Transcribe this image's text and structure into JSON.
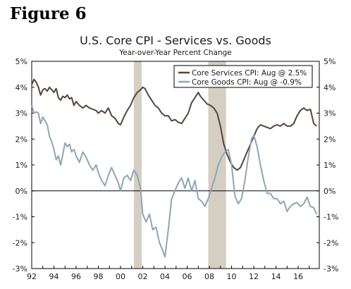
{
  "figure_label": "Figure 6",
  "chart_data": {
    "type": "line",
    "title": "U.S. Core CPI - Services vs. Goods",
    "subtitle": "Year-over-Year Percent Change",
    "xlim": [
      1992.0,
      2017.9
    ],
    "ylim": [
      -3,
      5
    ],
    "y_ticks": [
      "-3%",
      "-2%",
      "-1%",
      "0%",
      "1%",
      "2%",
      "3%",
      "4%",
      "5%"
    ],
    "x_ticks": [
      "92",
      "94",
      "96",
      "98",
      "00",
      "02",
      "04",
      "06",
      "08",
      "10",
      "12",
      "14",
      "16"
    ],
    "x_tick_years": [
      1992,
      1994,
      1996,
      1998,
      2000,
      2002,
      2004,
      2006,
      2008,
      2010,
      2012,
      2014,
      2016
    ],
    "recessions": [
      [
        2001.2,
        2001.9
      ],
      [
        2007.9,
        2009.5
      ]
    ],
    "legend_position": "top-right",
    "series": [
      {
        "name": "Core Services CPI: Aug @ 2.5%",
        "color": "#54453a",
        "points": [
          [
            1992.0,
            4.1
          ],
          [
            1992.2,
            4.3
          ],
          [
            1992.4,
            4.2
          ],
          [
            1992.6,
            4.0
          ],
          [
            1992.8,
            3.7
          ],
          [
            1993.0,
            3.9
          ],
          [
            1993.2,
            3.95
          ],
          [
            1993.4,
            3.85
          ],
          [
            1993.6,
            4.0
          ],
          [
            1993.8,
            3.9
          ],
          [
            1994.0,
            3.8
          ],
          [
            1994.2,
            3.95
          ],
          [
            1994.4,
            3.6
          ],
          [
            1994.6,
            3.5
          ],
          [
            1994.8,
            3.65
          ],
          [
            1995.0,
            3.6
          ],
          [
            1995.2,
            3.7
          ],
          [
            1995.4,
            3.55
          ],
          [
            1995.6,
            3.6
          ],
          [
            1995.8,
            3.3
          ],
          [
            1996.0,
            3.45
          ],
          [
            1996.3,
            3.3
          ],
          [
            1996.6,
            3.2
          ],
          [
            1996.9,
            3.3
          ],
          [
            1997.2,
            3.2
          ],
          [
            1997.5,
            3.15
          ],
          [
            1997.8,
            3.1
          ],
          [
            1998.0,
            3.0
          ],
          [
            1998.3,
            3.1
          ],
          [
            1998.6,
            3.0
          ],
          [
            1998.9,
            3.2
          ],
          [
            1999.2,
            2.9
          ],
          [
            1999.5,
            2.8
          ],
          [
            1999.8,
            2.6
          ],
          [
            2000.0,
            2.55
          ],
          [
            2000.3,
            2.85
          ],
          [
            2000.6,
            3.1
          ],
          [
            2000.9,
            3.3
          ],
          [
            2001.2,
            3.6
          ],
          [
            2001.5,
            3.8
          ],
          [
            2001.8,
            3.9
          ],
          [
            2002.0,
            4.0
          ],
          [
            2002.2,
            3.95
          ],
          [
            2002.5,
            3.7
          ],
          [
            2002.8,
            3.5
          ],
          [
            2003.1,
            3.3
          ],
          [
            2003.4,
            3.2
          ],
          [
            2003.7,
            3.0
          ],
          [
            2004.0,
            2.9
          ],
          [
            2004.3,
            2.9
          ],
          [
            2004.6,
            2.7
          ],
          [
            2004.9,
            2.75
          ],
          [
            2005.2,
            2.65
          ],
          [
            2005.5,
            2.6
          ],
          [
            2005.8,
            2.8
          ],
          [
            2006.1,
            3.0
          ],
          [
            2006.4,
            3.4
          ],
          [
            2006.7,
            3.6
          ],
          [
            2007.0,
            3.8
          ],
          [
            2007.2,
            3.65
          ],
          [
            2007.5,
            3.5
          ],
          [
            2007.8,
            3.35
          ],
          [
            2008.1,
            3.3
          ],
          [
            2008.4,
            3.2
          ],
          [
            2008.7,
            3.0
          ],
          [
            2009.0,
            2.5
          ],
          [
            2009.3,
            1.8
          ],
          [
            2009.6,
            1.4
          ],
          [
            2009.9,
            1.1
          ],
          [
            2010.2,
            0.9
          ],
          [
            2010.5,
            0.8
          ],
          [
            2010.8,
            0.9
          ],
          [
            2011.1,
            1.2
          ],
          [
            2011.4,
            1.5
          ],
          [
            2011.7,
            1.8
          ],
          [
            2012.0,
            2.1
          ],
          [
            2012.3,
            2.4
          ],
          [
            2012.6,
            2.55
          ],
          [
            2012.9,
            2.5
          ],
          [
            2013.2,
            2.45
          ],
          [
            2013.5,
            2.4
          ],
          [
            2013.8,
            2.5
          ],
          [
            2014.1,
            2.55
          ],
          [
            2014.4,
            2.5
          ],
          [
            2014.7,
            2.6
          ],
          [
            2015.0,
            2.5
          ],
          [
            2015.3,
            2.5
          ],
          [
            2015.6,
            2.6
          ],
          [
            2015.9,
            2.9
          ],
          [
            2016.2,
            3.1
          ],
          [
            2016.5,
            3.2
          ],
          [
            2016.8,
            3.1
          ],
          [
            2017.1,
            3.15
          ],
          [
            2017.4,
            2.6
          ],
          [
            2017.65,
            2.5
          ]
        ]
      },
      {
        "name": "Core Goods CPI: Aug @ -0.9%",
        "color": "#8ea6b4",
        "points": [
          [
            1992.0,
            3.3
          ],
          [
            1992.2,
            3.0
          ],
          [
            1992.4,
            3.05
          ],
          [
            1992.6,
            3.0
          ],
          [
            1992.8,
            2.6
          ],
          [
            1993.0,
            2.85
          ],
          [
            1993.2,
            2.7
          ],
          [
            1993.4,
            2.55
          ],
          [
            1993.6,
            2.1
          ],
          [
            1993.8,
            1.9
          ],
          [
            1994.0,
            1.6
          ],
          [
            1994.2,
            1.2
          ],
          [
            1994.4,
            1.35
          ],
          [
            1994.6,
            1.0
          ],
          [
            1994.8,
            1.4
          ],
          [
            1995.0,
            1.85
          ],
          [
            1995.2,
            1.7
          ],
          [
            1995.4,
            1.8
          ],
          [
            1995.6,
            1.5
          ],
          [
            1995.8,
            1.6
          ],
          [
            1996.0,
            1.35
          ],
          [
            1996.3,
            1.1
          ],
          [
            1996.6,
            1.5
          ],
          [
            1996.9,
            1.3
          ],
          [
            1997.2,
            1.0
          ],
          [
            1997.5,
            0.8
          ],
          [
            1997.8,
            1.0
          ],
          [
            1998.0,
            0.7
          ],
          [
            1998.3,
            0.4
          ],
          [
            1998.6,
            0.2
          ],
          [
            1998.9,
            0.6
          ],
          [
            1999.2,
            0.9
          ],
          [
            1999.5,
            0.6
          ],
          [
            1999.8,
            0.3
          ],
          [
            2000.0,
            0.0
          ],
          [
            2000.3,
            0.5
          ],
          [
            2000.6,
            0.6
          ],
          [
            2000.9,
            0.4
          ],
          [
            2001.2,
            0.8
          ],
          [
            2001.5,
            0.6
          ],
          [
            2001.8,
            0.1
          ],
          [
            2002.0,
            -0.9
          ],
          [
            2002.3,
            -1.2
          ],
          [
            2002.6,
            -0.9
          ],
          [
            2002.9,
            -1.5
          ],
          [
            2003.2,
            -1.4
          ],
          [
            2003.5,
            -2.0
          ],
          [
            2003.8,
            -2.3
          ],
          [
            2004.0,
            -2.55
          ],
          [
            2004.3,
            -1.5
          ],
          [
            2004.6,
            -0.3
          ],
          [
            2004.9,
            0.0
          ],
          [
            2005.2,
            0.3
          ],
          [
            2005.5,
            0.5
          ],
          [
            2005.8,
            0.1
          ],
          [
            2006.1,
            0.5
          ],
          [
            2006.4,
            0.0
          ],
          [
            2006.7,
            0.4
          ],
          [
            2007.0,
            -0.3
          ],
          [
            2007.3,
            -0.4
          ],
          [
            2007.6,
            -0.6
          ],
          [
            2007.9,
            -0.3
          ],
          [
            2008.2,
            0.1
          ],
          [
            2008.5,
            0.5
          ],
          [
            2008.8,
            1.0
          ],
          [
            2009.1,
            1.3
          ],
          [
            2009.4,
            1.5
          ],
          [
            2009.7,
            1.6
          ],
          [
            2010.0,
            1.0
          ],
          [
            2010.3,
            -0.2
          ],
          [
            2010.6,
            -0.5
          ],
          [
            2010.9,
            -0.3
          ],
          [
            2011.2,
            0.4
          ],
          [
            2011.5,
            1.3
          ],
          [
            2011.8,
            2.0
          ],
          [
            2012.0,
            2.15
          ],
          [
            2012.3,
            1.7
          ],
          [
            2012.6,
            1.0
          ],
          [
            2012.9,
            0.4
          ],
          [
            2013.2,
            -0.1
          ],
          [
            2013.5,
            -0.1
          ],
          [
            2013.8,
            -0.3
          ],
          [
            2014.1,
            -0.3
          ],
          [
            2014.4,
            -0.5
          ],
          [
            2014.7,
            -0.4
          ],
          [
            2015.0,
            -0.8
          ],
          [
            2015.3,
            -0.6
          ],
          [
            2015.6,
            -0.5
          ],
          [
            2015.9,
            -0.45
          ],
          [
            2016.2,
            -0.6
          ],
          [
            2016.5,
            -0.5
          ],
          [
            2016.8,
            -0.25
          ],
          [
            2017.1,
            -0.6
          ],
          [
            2017.4,
            -0.65
          ],
          [
            2017.65,
            -0.9
          ]
        ]
      }
    ]
  }
}
